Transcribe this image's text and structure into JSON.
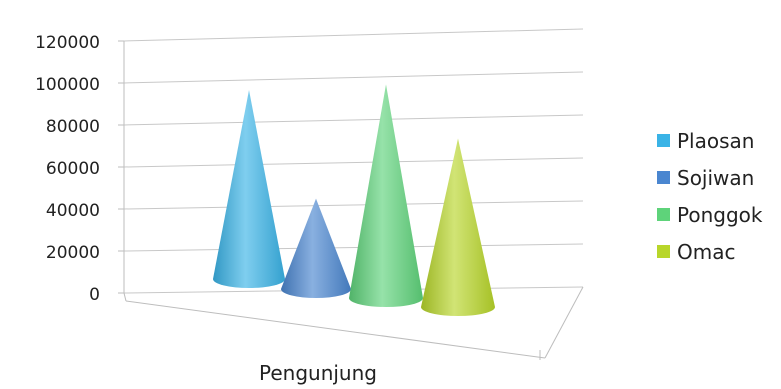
{
  "chart_data": {
    "type": "bar",
    "shape": "3d-cone",
    "categories": [
      "Pengunjung"
    ],
    "xlabel": "Pengunjung",
    "ylim": [
      0,
      120000
    ],
    "yticks": [
      "120000",
      "100000",
      "80000",
      "60000",
      "40000",
      "20000",
      "0"
    ],
    "grid": true,
    "legend_position": "right",
    "series": [
      {
        "name": "Plaosan",
        "values": [
          92000
        ],
        "color": "#3ab3e6"
      },
      {
        "name": "Sojiwan",
        "values": [
          44000
        ],
        "color": "#4a86d0"
      },
      {
        "name": "Ponggok",
        "values": [
          104000
        ],
        "color": "#5ed37a"
      },
      {
        "name": "Omac",
        "values": [
          82000
        ],
        "color": "#b8d62a"
      }
    ]
  }
}
